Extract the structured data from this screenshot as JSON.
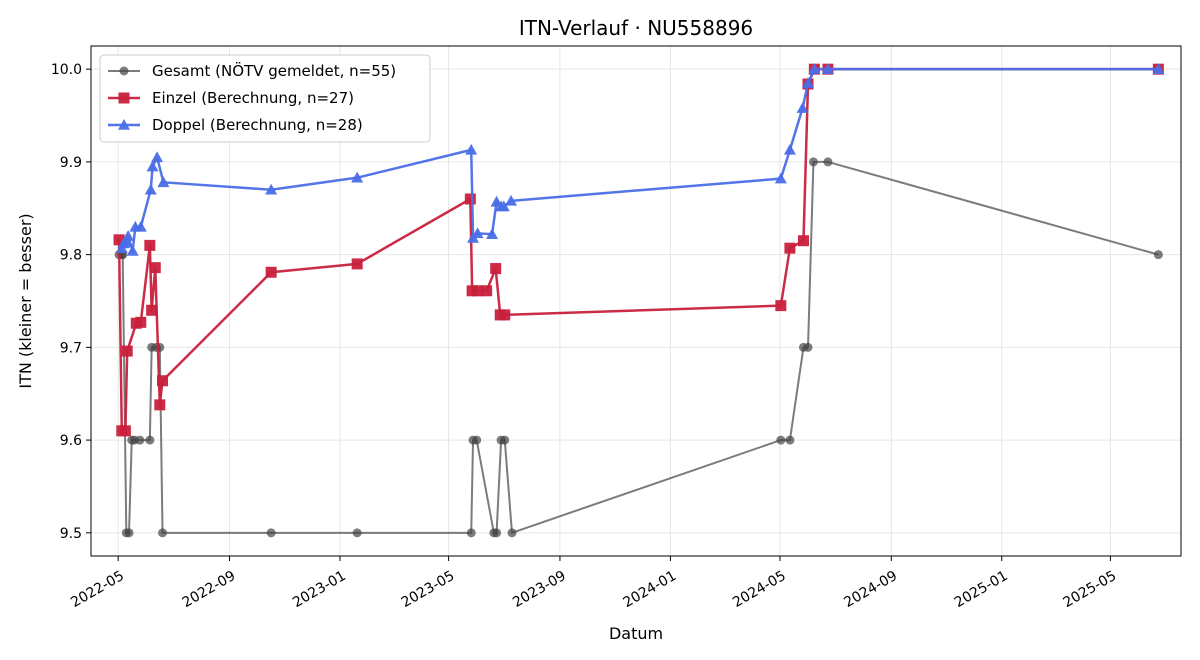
{
  "chart_data": {
    "type": "line",
    "title": "ITN-Verlauf · NU558896",
    "xlabel": "Datum",
    "ylabel": "ITN  (kleiner = besser)",
    "ylim": [
      9.475,
      10.025
    ],
    "xlim": [
      "2022-04-01",
      "2025-07-18"
    ],
    "yticks": [
      9.5,
      9.6,
      9.7,
      9.8,
      9.9,
      10.0
    ],
    "ytick_labels": [
      "9.5",
      "9.6",
      "9.7",
      "9.8",
      "9.9",
      "10.0"
    ],
    "xticks": [
      "2022-05-01",
      "2022-09-01",
      "2023-01-01",
      "2023-05-01",
      "2023-09-01",
      "2024-01-01",
      "2024-05-01",
      "2024-09-01",
      "2025-01-01",
      "2025-05-01"
    ],
    "xtick_labels": [
      "2022-05",
      "2022-09",
      "2023-01",
      "2023-05",
      "2023-09",
      "2024-01",
      "2024-05",
      "2024-09",
      "2025-01",
      "2025-05"
    ],
    "grid": true,
    "legend_position": "top-left",
    "series": [
      {
        "name": "Gesamt (NÖTV gemeldet, n=55)",
        "color": "#444444",
        "marker": "circle",
        "points": [
          [
            "2022-05-02",
            9.8
          ],
          [
            "2022-05-05",
            9.8
          ],
          [
            "2022-05-06",
            9.8
          ],
          [
            "2022-05-10",
            9.5
          ],
          [
            "2022-05-13",
            9.5
          ],
          [
            "2022-05-16",
            9.6
          ],
          [
            "2022-05-19",
            9.6
          ],
          [
            "2022-05-25",
            9.6
          ],
          [
            "2022-06-05",
            9.6
          ],
          [
            "2022-06-07",
            9.7
          ],
          [
            "2022-06-12",
            9.7
          ],
          [
            "2022-06-16",
            9.7
          ],
          [
            "2022-06-19",
            9.5
          ],
          [
            "2022-10-17",
            9.5
          ],
          [
            "2023-01-20",
            9.5
          ],
          [
            "2023-05-26",
            9.5
          ],
          [
            "2023-05-28",
            9.6
          ],
          [
            "2023-06-01",
            9.6
          ],
          [
            "2023-06-20",
            9.5
          ],
          [
            "2023-06-23",
            9.5
          ],
          [
            "2023-06-28",
            9.6
          ],
          [
            "2023-07-02",
            9.6
          ],
          [
            "2023-07-10",
            9.5
          ],
          [
            "2024-05-02",
            9.6
          ],
          [
            "2024-05-12",
            9.6
          ],
          [
            "2024-05-27",
            9.7
          ],
          [
            "2024-06-01",
            9.7
          ],
          [
            "2024-06-07",
            9.9
          ],
          [
            "2024-06-23",
            9.9
          ],
          [
            "2025-06-23",
            9.8
          ]
        ]
      },
      {
        "name": "Einzel (Berechnung, n=27)",
        "color": "#c8203c",
        "marker": "square",
        "points": [
          [
            "2022-05-02",
            9.816
          ],
          [
            "2022-05-05",
            9.61
          ],
          [
            "2022-05-09",
            9.61
          ],
          [
            "2022-05-11",
            9.696
          ],
          [
            "2022-05-21",
            9.726
          ],
          [
            "2022-05-26",
            9.727
          ],
          [
            "2022-06-05",
            9.81
          ],
          [
            "2022-06-07",
            9.74
          ],
          [
            "2022-06-11",
            9.786
          ],
          [
            "2022-06-16",
            9.638
          ],
          [
            "2022-06-19",
            9.664
          ],
          [
            "2022-10-17",
            9.781
          ],
          [
            "2023-01-20",
            9.79
          ],
          [
            "2023-05-25",
            9.86
          ],
          [
            "2023-05-27",
            9.761
          ],
          [
            "2023-06-02",
            9.761
          ],
          [
            "2023-06-12",
            9.761
          ],
          [
            "2023-06-22",
            9.785
          ],
          [
            "2023-06-27",
            9.735
          ],
          [
            "2023-07-02",
            9.735
          ],
          [
            "2024-05-02",
            9.745
          ],
          [
            "2024-05-12",
            9.807
          ],
          [
            "2024-05-27",
            9.815
          ],
          [
            "2024-06-01",
            9.984
          ],
          [
            "2024-06-08",
            10.0
          ],
          [
            "2024-06-23",
            10.0
          ],
          [
            "2025-06-23",
            10.0
          ]
        ]
      },
      {
        "name": "Doppel (Berechnung, n=28)",
        "color": "#4a6ee8",
        "marker": "triangle",
        "points": [
          [
            "2022-05-05",
            9.807
          ],
          [
            "2022-05-07",
            9.812
          ],
          [
            "2022-05-10",
            9.813
          ],
          [
            "2022-05-12",
            9.82
          ],
          [
            "2022-05-17",
            9.804
          ],
          [
            "2022-05-20",
            9.83
          ],
          [
            "2022-05-26",
            9.83
          ],
          [
            "2022-06-06",
            9.87
          ],
          [
            "2022-06-08",
            9.895
          ],
          [
            "2022-06-13",
            9.905
          ],
          [
            "2022-06-20",
            9.878
          ],
          [
            "2022-10-17",
            9.87
          ],
          [
            "2023-01-20",
            9.883
          ],
          [
            "2023-05-26",
            9.913
          ],
          [
            "2023-05-28",
            9.818
          ],
          [
            "2023-06-02",
            9.823
          ],
          [
            "2023-06-18",
            9.822
          ],
          [
            "2023-06-23",
            9.857
          ],
          [
            "2023-06-28",
            9.852
          ],
          [
            "2023-07-01",
            9.852
          ],
          [
            "2023-07-09",
            9.858
          ],
          [
            "2024-05-02",
            9.882
          ],
          [
            "2024-05-12",
            9.913
          ],
          [
            "2024-05-26",
            9.958
          ],
          [
            "2024-06-01",
            9.985
          ],
          [
            "2024-06-08",
            10.0
          ],
          [
            "2024-06-23",
            10.0
          ],
          [
            "2025-06-23",
            10.0
          ]
        ]
      }
    ]
  }
}
